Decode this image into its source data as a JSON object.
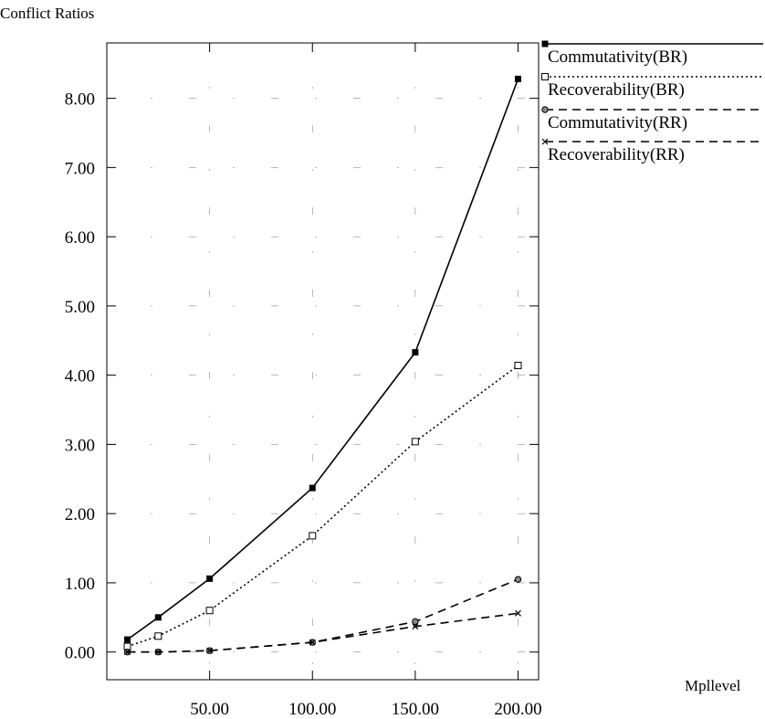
{
  "chart_data": {
    "type": "line",
    "title": "",
    "ylabel": "Conflict Ratios",
    "xlabel": "Mpllevel",
    "xlim": [
      0,
      210
    ],
    "ylim": [
      -0.4,
      8.8
    ],
    "x_ticks": [
      {
        "value": 50,
        "label": "50.00"
      },
      {
        "value": 100,
        "label": "100.00"
      },
      {
        "value": 150,
        "label": "150.00"
      },
      {
        "value": 200,
        "label": "200.00"
      }
    ],
    "y_ticks": [
      {
        "value": 0,
        "label": "0.00"
      },
      {
        "value": 1,
        "label": "1.00"
      },
      {
        "value": 2,
        "label": "2.00"
      },
      {
        "value": 3,
        "label": "3.00"
      },
      {
        "value": 4,
        "label": "4.00"
      },
      {
        "value": 5,
        "label": "5.00"
      },
      {
        "value": 6,
        "label": "6.00"
      },
      {
        "value": 7,
        "label": "7.00"
      },
      {
        "value": 8,
        "label": "8.00"
      }
    ],
    "grid": true,
    "legend_position": "top-right",
    "series": [
      {
        "name": "Commutativity(BR)",
        "line_style": "solid",
        "marker": "filled-square",
        "x": [
          10,
          25,
          50,
          100,
          150,
          200
        ],
        "y": [
          0.18,
          0.5,
          1.06,
          2.37,
          4.33,
          8.28
        ]
      },
      {
        "name": "Recoverability(BR)",
        "line_style": "dotted",
        "marker": "open-square",
        "x": [
          10,
          25,
          50,
          100,
          150,
          200
        ],
        "y": [
          0.08,
          0.23,
          0.6,
          1.68,
          3.04,
          4.14
        ]
      },
      {
        "name": "Commutativity(RR)",
        "line_style": "dashed",
        "marker": "circle",
        "x": [
          10,
          25,
          50,
          100,
          150,
          200
        ],
        "y": [
          0.0,
          0.0,
          0.02,
          0.14,
          0.44,
          1.05
        ]
      },
      {
        "name": "Recoverability(RR)",
        "line_style": "dashed",
        "marker": "x",
        "x": [
          10,
          25,
          50,
          100,
          150,
          200
        ],
        "y": [
          0.0,
          0.0,
          0.02,
          0.14,
          0.37,
          0.56
        ]
      }
    ]
  }
}
